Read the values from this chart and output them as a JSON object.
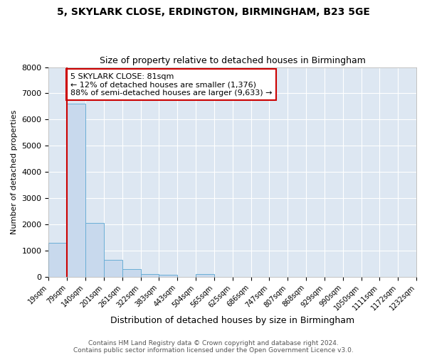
{
  "title": "5, SKYLARK CLOSE, ERDINGTON, BIRMINGHAM, B23 5GE",
  "subtitle": "Size of property relative to detached houses in Birmingham",
  "xlabel": "Distribution of detached houses by size in Birmingham",
  "ylabel": "Number of detached properties",
  "bin_labels": [
    "19sqm",
    "79sqm",
    "140sqm",
    "201sqm",
    "261sqm",
    "322sqm",
    "383sqm",
    "443sqm",
    "504sqm",
    "565sqm",
    "625sqm",
    "686sqm",
    "747sqm",
    "807sqm",
    "868sqm",
    "929sqm",
    "990sqm",
    "1050sqm",
    "1111sqm",
    "1172sqm",
    "1232sqm"
  ],
  "bar_values": [
    1300,
    6600,
    2050,
    650,
    300,
    120,
    80,
    0,
    100,
    0,
    0,
    0,
    0,
    0,
    0,
    0,
    0,
    0,
    0,
    0
  ],
  "bar_color": "#c8d9ed",
  "bar_edge_color": "#6aaed6",
  "ylim": [
    0,
    8000
  ],
  "yticks": [
    0,
    1000,
    2000,
    3000,
    4000,
    5000,
    6000,
    7000,
    8000
  ],
  "vline_x": 1,
  "vline_color": "#cc0000",
  "annotation_text": "5 SKYLARK CLOSE: 81sqm\n← 12% of detached houses are smaller (1,376)\n88% of semi-detached houses are larger (9,633) →",
  "annotation_box_color": "#ffffff",
  "annotation_box_edge_color": "#cc0000",
  "footer_line1": "Contains HM Land Registry data © Crown copyright and database right 2024.",
  "footer_line2": "Contains public sector information licensed under the Open Government Licence v3.0.",
  "fig_background_color": "#ffffff",
  "plot_background": "#dde7f2"
}
